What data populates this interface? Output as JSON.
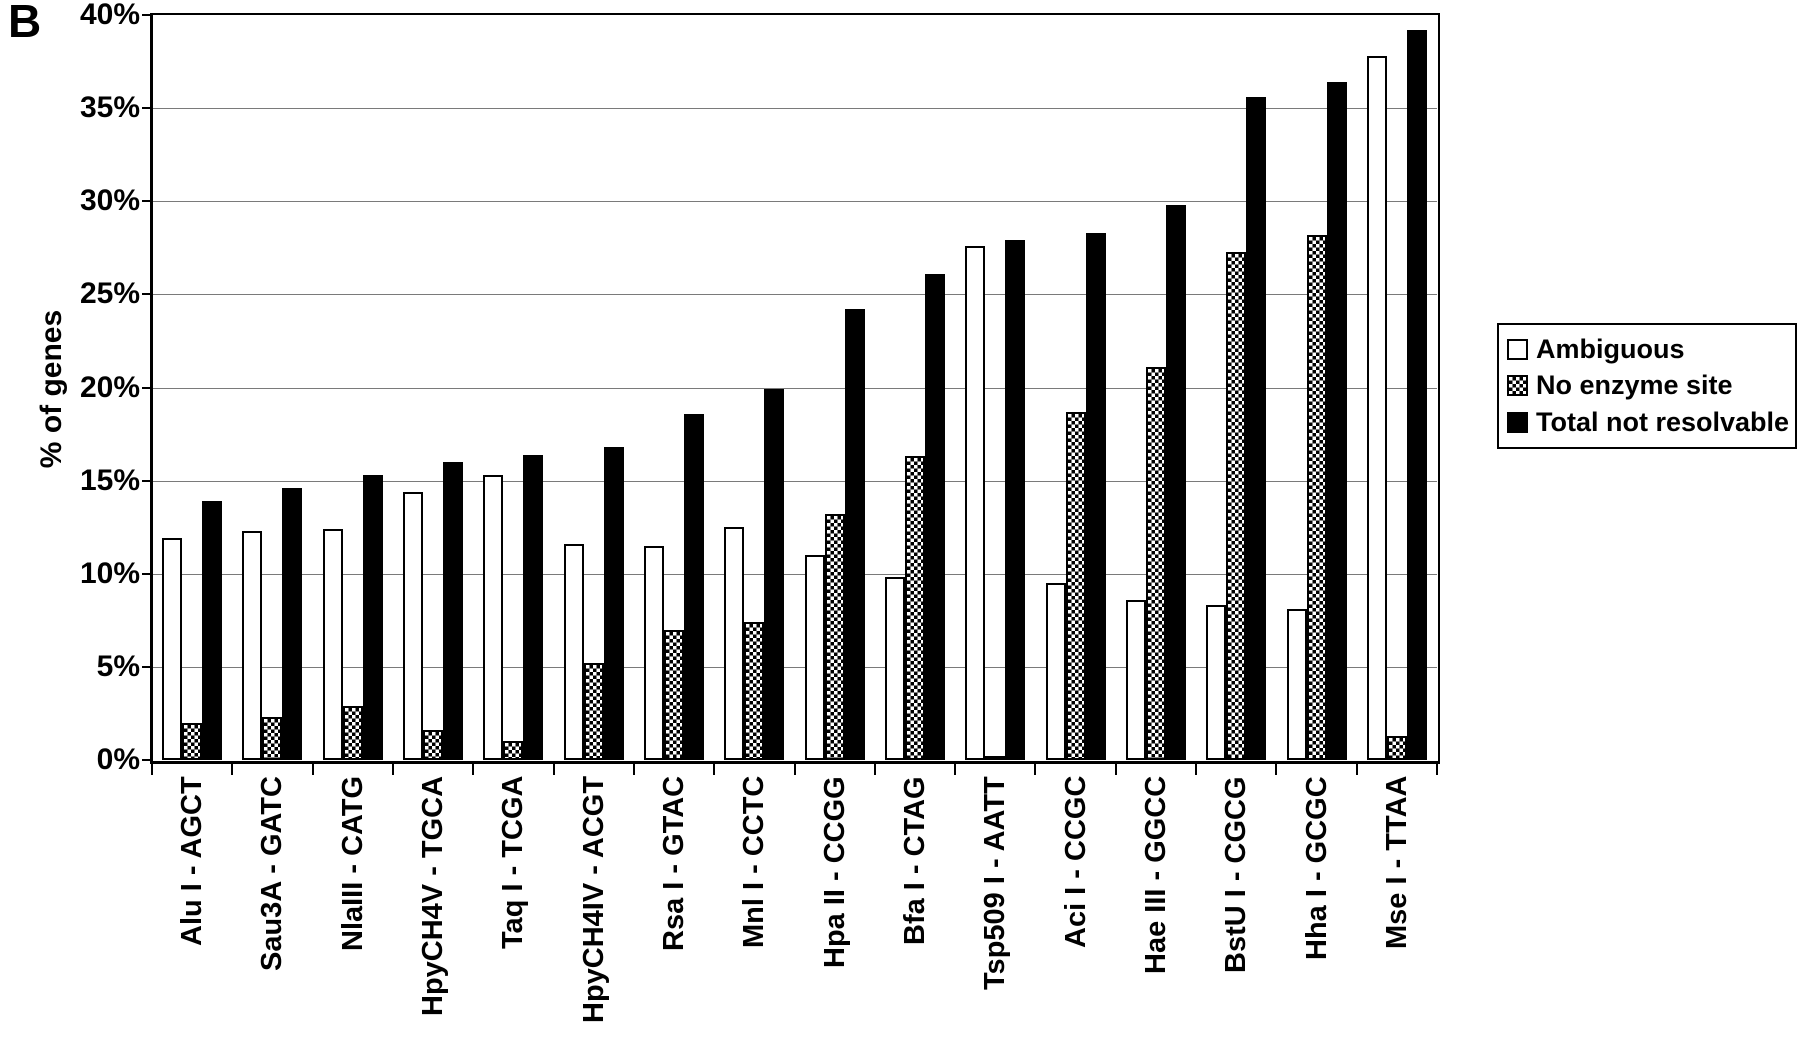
{
  "panel_label": "B",
  "legend": {
    "items": [
      {
        "label": "Ambiguous",
        "fill": "white"
      },
      {
        "label": "No enzyme site",
        "fill": "checker"
      },
      {
        "label": "Total not resolvable",
        "fill": "black"
      }
    ]
  },
  "chart_data": {
    "type": "bar",
    "title": "",
    "xlabel": "",
    "ylabel": "% of genes",
    "ylim": [
      0,
      40
    ],
    "ytick_step": 5,
    "ytick_labels": [
      "0%",
      "5%",
      "10%",
      "15%",
      "20%",
      "25%",
      "30%",
      "35%",
      "40%"
    ],
    "grid": true,
    "legend_position": "right",
    "categories": [
      "Alu I - AGCT",
      "Sau3A - GATC",
      "NlaIII - CATG",
      "HpyCH4V - TGCA",
      "Taq I - TCGA",
      "HpyCH4IV - ACGT",
      "Rsa I - GTAC",
      "Mnl I - CCTC",
      "Hpa II - CCGG",
      "Bfa I - CTAG",
      "Tsp509 I - AATT",
      "Aci I - CCGC",
      "Hae III - GGCC",
      "BstU I - CGCG",
      "Hha I - GCGC",
      "Mse I - TTAA"
    ],
    "series": [
      {
        "name": "Ambiguous",
        "pattern": "white",
        "values": [
          11.9,
          12.3,
          12.4,
          14.4,
          15.3,
          11.6,
          11.5,
          12.5,
          11.0,
          9.8,
          27.6,
          9.5,
          8.6,
          8.3,
          8.1,
          37.8
        ]
      },
      {
        "name": "No enzyme site",
        "pattern": "checker",
        "values": [
          2.0,
          2.3,
          2.9,
          1.6,
          1.0,
          5.2,
          7.0,
          7.4,
          13.2,
          16.3,
          0.2,
          18.7,
          21.1,
          27.3,
          28.2,
          1.3
        ]
      },
      {
        "name": "Total not resolvable",
        "pattern": "black",
        "values": [
          13.9,
          14.6,
          15.3,
          16.0,
          16.4,
          16.8,
          18.6,
          19.9,
          24.2,
          26.1,
          27.9,
          28.3,
          29.8,
          35.6,
          36.4,
          39.2
        ]
      }
    ],
    "colors": {
      "bar_black": "#000000",
      "bar_white": "#ffffff",
      "grid": "#7a7a7a"
    }
  }
}
